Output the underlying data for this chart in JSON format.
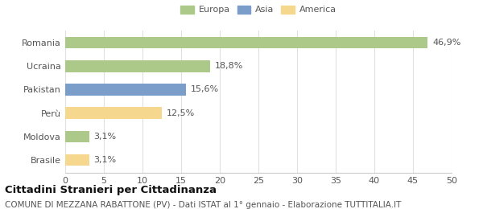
{
  "categories": [
    "Brasile",
    "Moldova",
    "Perù",
    "Pakistan",
    "Ucraina",
    "Romania"
  ],
  "values": [
    3.1,
    3.1,
    12.5,
    15.6,
    18.8,
    46.9
  ],
  "bar_colors": [
    "#f5d78e",
    "#adc98a",
    "#f5d78e",
    "#7b9dc9",
    "#adc98a",
    "#adc98a"
  ],
  "labels": [
    "3,1%",
    "3,1%",
    "12,5%",
    "15,6%",
    "18,8%",
    "46,9%"
  ],
  "xlim": [
    0,
    50
  ],
  "xticks": [
    0,
    5,
    10,
    15,
    20,
    25,
    30,
    35,
    40,
    45,
    50
  ],
  "title": "Cittadini Stranieri per Cittadinanza",
  "subtitle": "COMUNE DI MEZZANA RABATTONE (PV) - Dati ISTAT al 1° gennaio - Elaborazione TUTTITALIA.IT",
  "legend_labels": [
    "Europa",
    "Asia",
    "America"
  ],
  "legend_colors": [
    "#adc98a",
    "#7b9dc9",
    "#f5d78e"
  ],
  "background_color": "#ffffff",
  "grid_color": "#e0e0e0",
  "bar_height": 0.5,
  "label_fontsize": 8,
  "tick_fontsize": 8,
  "title_fontsize": 9.5,
  "subtitle_fontsize": 7.5
}
